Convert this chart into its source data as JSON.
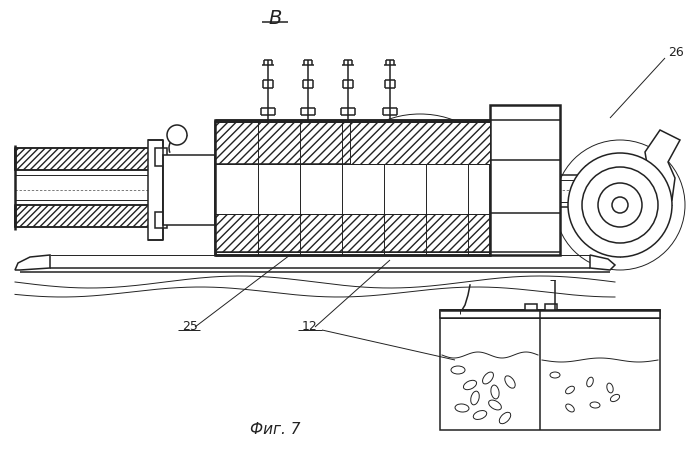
{
  "title_label": "В",
  "fig_label": "Фиг. 7",
  "label_25": "25",
  "label_12": "12",
  "label_26": "26",
  "bg_color": "#ffffff",
  "line_color": "#222222",
  "figsize": [
    6.99,
    4.58
  ],
  "dpi": 100
}
